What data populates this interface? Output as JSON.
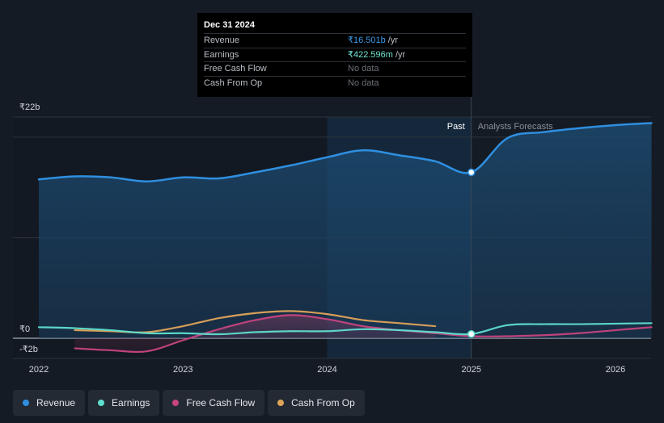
{
  "tooltip": {
    "date": "Dec 31 2024",
    "rows": [
      {
        "label": "Revenue",
        "value": "₹16.501b",
        "unit": "/yr"
      },
      {
        "label": "Earnings",
        "value": "₹422.596m",
        "unit": "/yr"
      },
      {
        "label": "Free Cash Flow",
        "value": "No data",
        "unit": ""
      },
      {
        "label": "Cash From Op",
        "value": "No data",
        "unit": ""
      }
    ]
  },
  "colors": {
    "revenue": "#2f8fe0",
    "earnings": "#5fdfcf",
    "free_cash_flow": "#c8457f",
    "cash_from_op": "#e0a35a"
  },
  "legend": [
    {
      "label": "Revenue",
      "key": "revenue"
    },
    {
      "label": "Earnings",
      "key": "earnings"
    },
    {
      "label": "Free Cash Flow",
      "key": "free_cash_flow"
    },
    {
      "label": "Cash From Op",
      "key": "cash_from_op"
    }
  ],
  "chart_data": {
    "type": "line",
    "title": "",
    "xlabel": "",
    "ylabel": "",
    "units": "₹ billions",
    "xlim": [
      2021.85,
      2026.25
    ],
    "ylim": [
      -2,
      22
    ],
    "y_tick_labels": [
      {
        "value": 22,
        "label": "₹22b"
      },
      {
        "value": 0,
        "label": "₹0"
      },
      {
        "value": -2,
        "label": "-₹2b"
      }
    ],
    "x_ticks": [
      {
        "value": 2022,
        "label": "2022"
      },
      {
        "value": 2023,
        "label": "2023"
      },
      {
        "value": 2024,
        "label": "2024"
      },
      {
        "value": 2025,
        "label": "2025"
      },
      {
        "value": 2026,
        "label": "2026"
      }
    ],
    "past_label": "Past",
    "forecast_label": "Analysts Forecasts",
    "divider_x": 2025.0,
    "highlight_start": 2024.0,
    "series": [
      {
        "name": "Revenue",
        "key": "revenue",
        "points": [
          [
            2022.0,
            15.8
          ],
          [
            2022.25,
            16.1
          ],
          [
            2022.5,
            16.0
          ],
          [
            2022.75,
            15.6
          ],
          [
            2023.0,
            16.0
          ],
          [
            2023.25,
            15.9
          ],
          [
            2023.5,
            16.5
          ],
          [
            2023.75,
            17.2
          ],
          [
            2024.0,
            18.0
          ],
          [
            2024.25,
            18.7
          ],
          [
            2024.5,
            18.2
          ],
          [
            2024.75,
            17.6
          ],
          [
            2025.0,
            16.5
          ],
          [
            2025.25,
            19.9
          ],
          [
            2025.5,
            20.5
          ],
          [
            2025.75,
            20.9
          ],
          [
            2026.0,
            21.2
          ],
          [
            2026.25,
            21.4
          ]
        ],
        "forecast_from": 2025.0
      },
      {
        "name": "Earnings",
        "key": "earnings",
        "points": [
          [
            2022.0,
            1.1
          ],
          [
            2022.25,
            1.0
          ],
          [
            2022.5,
            0.8
          ],
          [
            2022.75,
            0.5
          ],
          [
            2023.0,
            0.5
          ],
          [
            2023.25,
            0.4
          ],
          [
            2023.5,
            0.6
          ],
          [
            2023.75,
            0.7
          ],
          [
            2024.0,
            0.7
          ],
          [
            2024.25,
            0.9
          ],
          [
            2024.5,
            0.8
          ],
          [
            2024.75,
            0.6
          ],
          [
            2025.0,
            0.42
          ],
          [
            2025.25,
            1.3
          ],
          [
            2025.5,
            1.4
          ],
          [
            2025.75,
            1.4
          ],
          [
            2026.0,
            1.45
          ],
          [
            2026.25,
            1.5
          ]
        ],
        "forecast_from": 2025.0
      },
      {
        "name": "Free Cash Flow",
        "key": "free_cash_flow",
        "points": [
          [
            2022.25,
            -1.0
          ],
          [
            2022.5,
            -1.2
          ],
          [
            2022.75,
            -1.3
          ],
          [
            2023.0,
            -0.2
          ],
          [
            2023.25,
            0.9
          ],
          [
            2023.5,
            1.8
          ],
          [
            2023.75,
            2.3
          ],
          [
            2024.0,
            1.9
          ],
          [
            2024.25,
            1.2
          ],
          [
            2024.5,
            0.8
          ],
          [
            2024.75,
            0.5
          ],
          [
            2025.0,
            0.2
          ],
          [
            2025.25,
            0.2
          ],
          [
            2025.5,
            0.3
          ],
          [
            2025.75,
            0.5
          ],
          [
            2026.0,
            0.8
          ],
          [
            2026.25,
            1.1
          ]
        ],
        "forecast_from": 2025.0
      },
      {
        "name": "Cash From Op",
        "key": "cash_from_op",
        "points": [
          [
            2022.25,
            0.8
          ],
          [
            2022.5,
            0.7
          ],
          [
            2022.75,
            0.6
          ],
          [
            2023.0,
            1.2
          ],
          [
            2023.25,
            2.0
          ],
          [
            2023.5,
            2.5
          ],
          [
            2023.75,
            2.7
          ],
          [
            2024.0,
            2.4
          ],
          [
            2024.25,
            1.8
          ],
          [
            2024.5,
            1.5
          ],
          [
            2024.75,
            1.2
          ]
        ],
        "forecast_from": null
      }
    ],
    "highlight_point": {
      "x": 2025.0,
      "revenue": 16.5,
      "earnings": 0.42
    }
  }
}
